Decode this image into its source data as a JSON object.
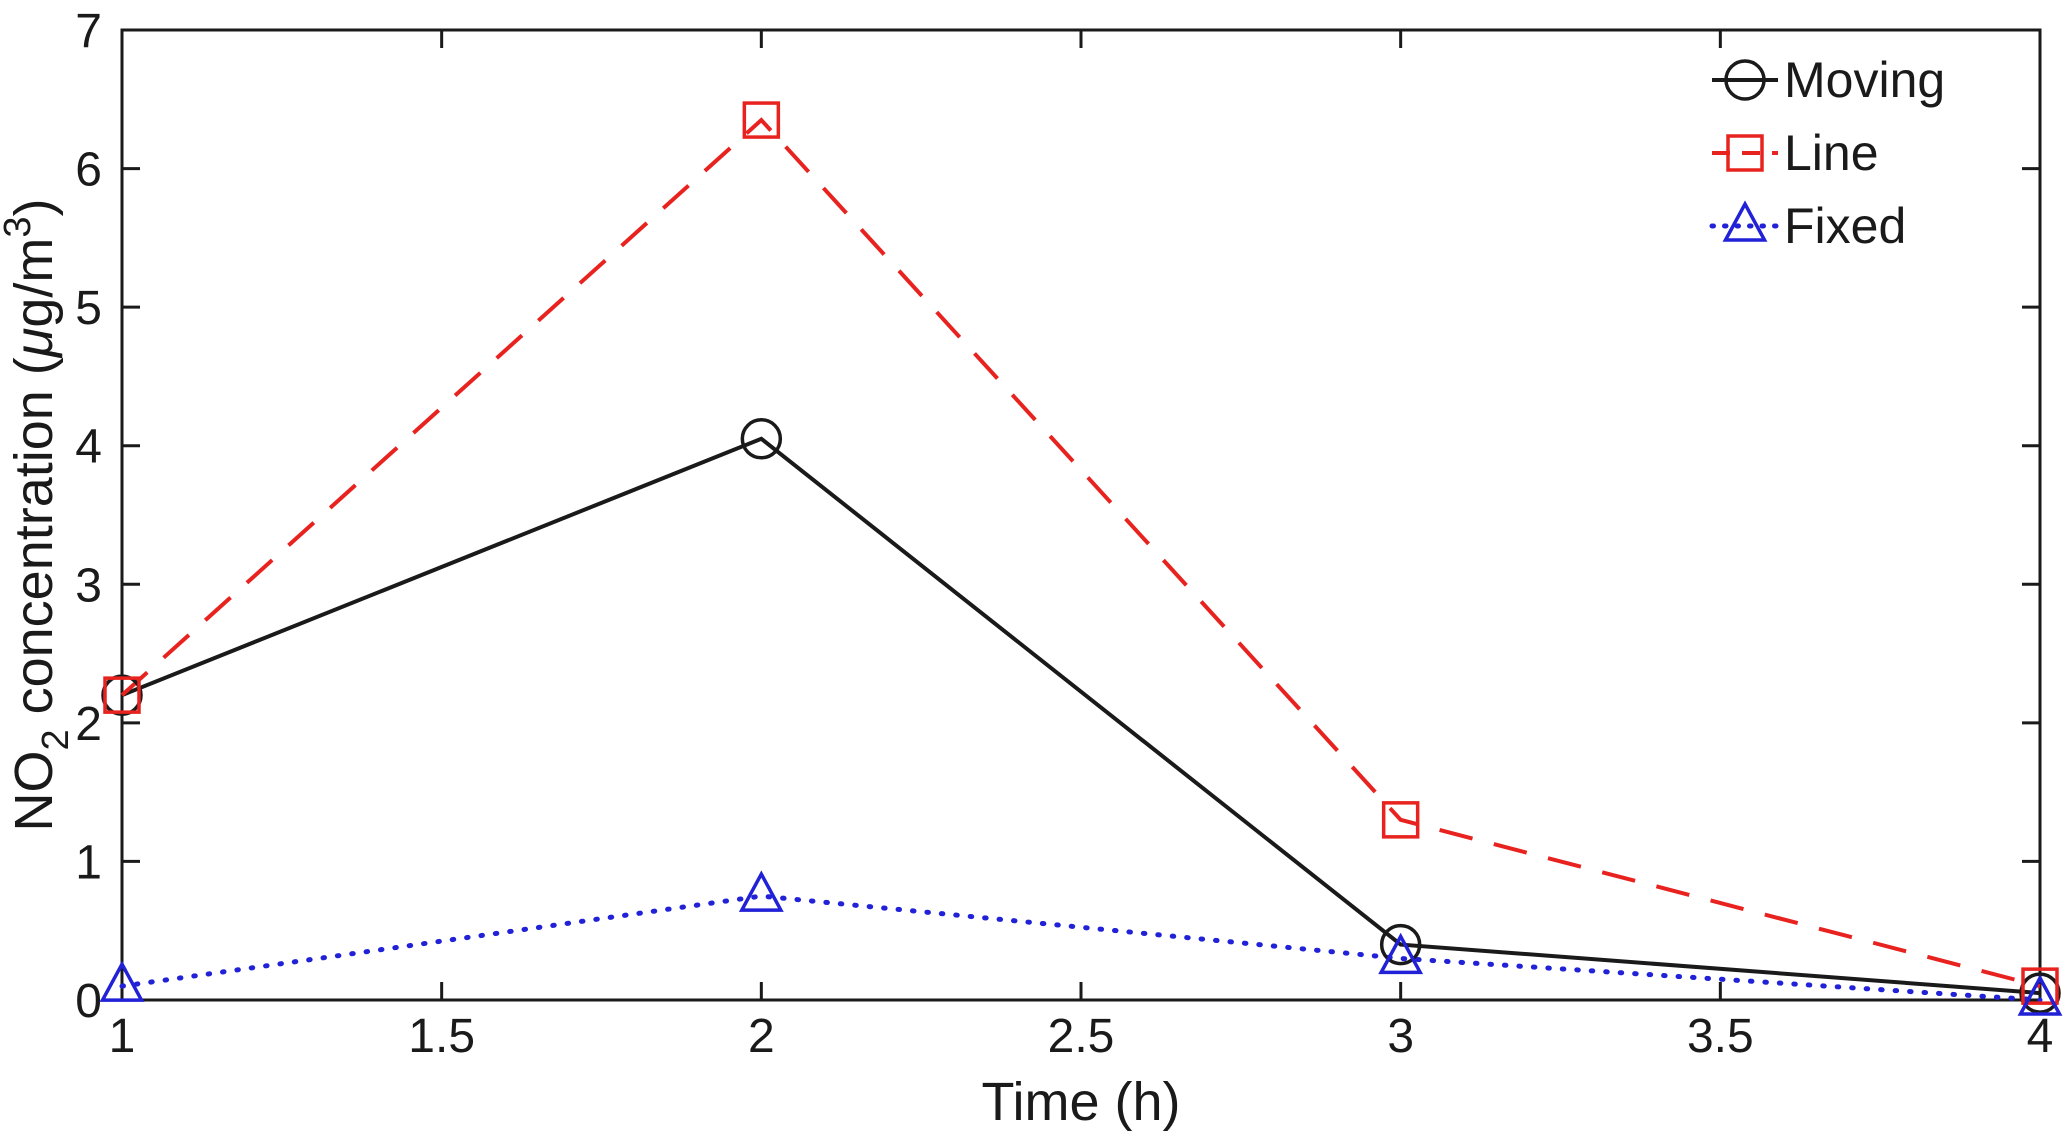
{
  "chart_data": {
    "type": "line",
    "title": "",
    "xlabel": "Time (h)",
    "ylabel": "NO2 concentration (μg/m3)",
    "ylabel_parts": [
      {
        "text": "NO"
      },
      {
        "text": "2",
        "style": "sub"
      },
      {
        "text": " concentration ("
      },
      {
        "text": "μ",
        "style": "italic"
      },
      {
        "text": "g/m"
      },
      {
        "text": "3",
        "style": "sup"
      },
      {
        "text": ")"
      }
    ],
    "xlim": [
      1,
      4
    ],
    "ylim": [
      0,
      7
    ],
    "xticks": [
      1,
      1.5,
      2,
      2.5,
      3,
      3.5,
      4
    ],
    "xtick_labels": [
      "1",
      "1.5",
      "2",
      "2.5",
      "3",
      "3.5",
      "4"
    ],
    "yticks": [
      0,
      1,
      2,
      3,
      4,
      5,
      6,
      7
    ],
    "ytick_labels": [
      "0",
      "1",
      "2",
      "3",
      "4",
      "5",
      "6",
      "7"
    ],
    "x": [
      1,
      2,
      3,
      4
    ],
    "series": [
      {
        "name": "Moving",
        "color": "#1a1a1a",
        "line_style": "solid",
        "marker": "circle",
        "values": [
          2.2,
          4.05,
          0.4,
          0.05
        ]
      },
      {
        "name": "Line",
        "color": "#e8231f",
        "line_style": "dashed",
        "marker": "square",
        "values": [
          2.2,
          6.35,
          1.3,
          0.1
        ]
      },
      {
        "name": "Fixed",
        "color": "#2121d8",
        "line_style": "dotted",
        "marker": "triangle",
        "values": [
          0.1,
          0.75,
          0.3,
          0.0
        ]
      }
    ],
    "legend_position": "top-right",
    "grid": false,
    "background": "#ffffff",
    "axis_color": "#1a1a1a"
  }
}
